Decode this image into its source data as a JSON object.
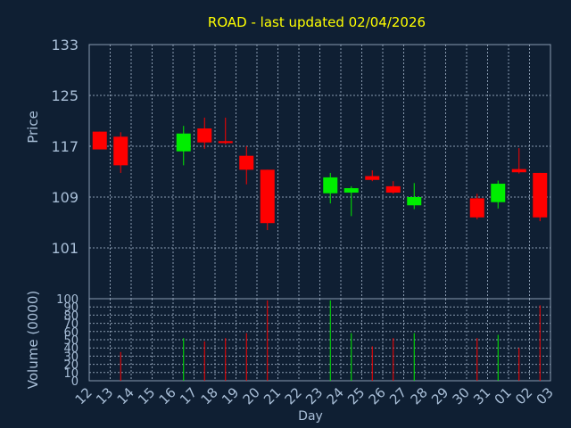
{
  "title": "ROAD - last updated 02/04/2026",
  "colors": {
    "background": "#0f1f33",
    "title": "#ffff00",
    "axis_text": "#a9bfd8",
    "grid": "#8a9bb0",
    "up": "#00ee00",
    "down": "#ff0000"
  },
  "chart_data": [
    {
      "type": "candlestick",
      "ylabel": "Price",
      "ylim": [
        93,
        133
      ],
      "yticks": [
        101,
        109,
        117,
        125,
        133
      ],
      "grid": true,
      "x_ticks": [
        "12",
        "13",
        "14",
        "15",
        "16",
        "17",
        "18",
        "19",
        "20",
        "21",
        "22",
        "23",
        "24",
        "25",
        "26",
        "27",
        "28",
        "29",
        "30",
        "31",
        "01",
        "02",
        "03"
      ],
      "candles": [
        {
          "day": "12",
          "open": 119.3,
          "close": 116.5,
          "high": 119.3,
          "low": 116.5
        },
        {
          "day": "13",
          "open": 118.5,
          "close": 114.0,
          "high": 119.2,
          "low": 112.8
        },
        {
          "day": "16",
          "open": 116.2,
          "close": 119.0,
          "high": 120.2,
          "low": 114.0
        },
        {
          "day": "17",
          "open": 119.8,
          "close": 117.6,
          "high": 121.5,
          "low": 116.6
        },
        {
          "day": "18",
          "open": 117.8,
          "close": 117.5,
          "high": 121.5,
          "low": 117.3
        },
        {
          "day": "19",
          "open": 115.5,
          "close": 113.3,
          "high": 117.0,
          "low": 111.0
        },
        {
          "day": "20",
          "open": 113.3,
          "close": 104.9,
          "high": 113.3,
          "low": 103.8
        },
        {
          "day": "23",
          "open": 109.6,
          "close": 112.1,
          "high": 112.8,
          "low": 108.0
        },
        {
          "day": "24",
          "open": 109.7,
          "close": 110.4,
          "high": 110.7,
          "low": 106.0
        },
        {
          "day": "25",
          "open": 112.3,
          "close": 111.7,
          "high": 113.2,
          "low": 111.5
        },
        {
          "day": "26",
          "open": 110.7,
          "close": 109.7,
          "high": 111.5,
          "low": 109.5
        },
        {
          "day": "27",
          "open": 107.7,
          "close": 109.0,
          "high": 111.2,
          "low": 107.1
        },
        {
          "day": "30",
          "open": 108.8,
          "close": 105.8,
          "high": 109.5,
          "low": 105.5
        },
        {
          "day": "31",
          "open": 108.2,
          "close": 111.1,
          "high": 111.6,
          "low": 107.2
        },
        {
          "day": "01",
          "open": 113.4,
          "close": 112.9,
          "high": 116.7,
          "low": 112.7
        },
        {
          "day": "02",
          "open": 112.8,
          "close": 105.8,
          "high": 112.8,
          "low": 105.2
        }
      ]
    },
    {
      "type": "bar",
      "xlabel": "Day",
      "ylabel": "Volume (0000)",
      "ylim": [
        0,
        100
      ],
      "yticks": [
        0,
        10,
        20,
        30,
        40,
        50,
        60,
        70,
        80,
        90,
        100
      ],
      "grid": true,
      "bars": [
        {
          "day": "13",
          "value": 35,
          "direction": "down"
        },
        {
          "day": "16",
          "value": 52,
          "direction": "up"
        },
        {
          "day": "17",
          "value": 48,
          "direction": "down"
        },
        {
          "day": "18",
          "value": 52,
          "direction": "down"
        },
        {
          "day": "19",
          "value": 58,
          "direction": "down"
        },
        {
          "day": "20",
          "value": 98,
          "direction": "down"
        },
        {
          "day": "23",
          "value": 98,
          "direction": "up"
        },
        {
          "day": "24",
          "value": 58,
          "direction": "up"
        },
        {
          "day": "25",
          "value": 42,
          "direction": "down"
        },
        {
          "day": "26",
          "value": 52,
          "direction": "down"
        },
        {
          "day": "27",
          "value": 58,
          "direction": "up"
        },
        {
          "day": "30",
          "value": 52,
          "direction": "down"
        },
        {
          "day": "31",
          "value": 56,
          "direction": "up"
        },
        {
          "day": "01",
          "value": 40,
          "direction": "down"
        },
        {
          "day": "02",
          "value": 92,
          "direction": "down"
        }
      ]
    }
  ]
}
